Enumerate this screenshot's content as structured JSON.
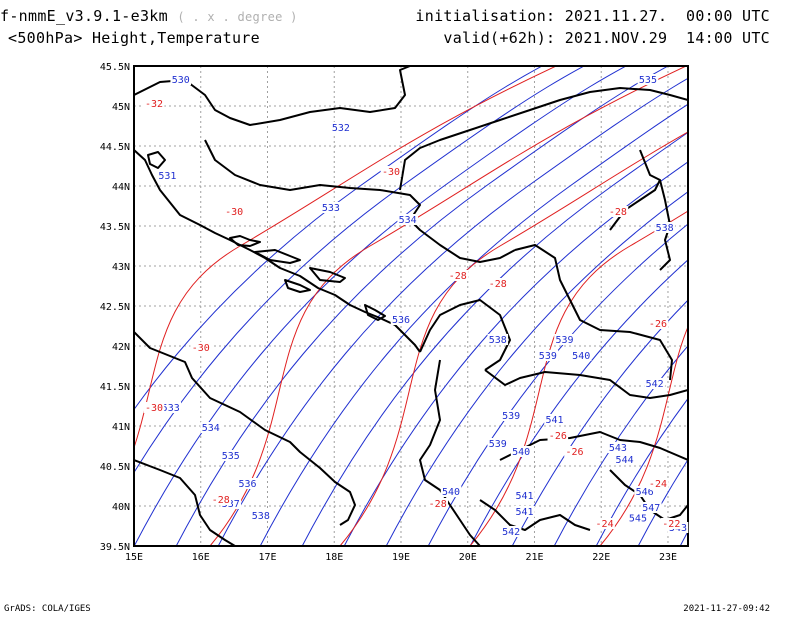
{
  "header": {
    "model_name": "f-nmmE_v3.9.1-e3km",
    "model_units": "( . x . degree )",
    "field": "<500hPa> Height,Temperature",
    "init_label": "initialisation:",
    "init_value": "2021.11.27.  00:00 UTC",
    "valid_label": "valid(+62h):",
    "valid_value": "2021.NOV.29  14:00 UTC"
  },
  "footer": {
    "left": "GrADS: COLA/IGES",
    "right": "2021-11-27-09:42"
  },
  "map": {
    "lon_ticks": [
      "15E",
      "16E",
      "17E",
      "18E",
      "19E",
      "20E",
      "21E",
      "22E",
      "23E"
    ],
    "lat_ticks": [
      "45.5N",
      "45N",
      "44.5N",
      "44N",
      "43.5N",
      "43N",
      "42.5N",
      "42N",
      "41.5N",
      "41N",
      "40.5N",
      "40N",
      "39.5N"
    ],
    "lon_range": [
      15,
      23.3
    ],
    "lat_range": [
      39.5,
      45.5
    ],
    "colors": {
      "height": "#2030d0",
      "temperature": "#e02020",
      "coast": "#000000",
      "grid": "#a0a0a0"
    },
    "height_labels": [
      {
        "text": "530",
        "lon": 15.7,
        "lat": 45.3
      },
      {
        "text": "531",
        "lon": 15.5,
        "lat": 44.1
      },
      {
        "text": "532",
        "lon": 18.1,
        "lat": 44.7
      },
      {
        "text": "533",
        "lon": 17.95,
        "lat": 43.7
      },
      {
        "text": "534",
        "lon": 19.1,
        "lat": 43.55
      },
      {
        "text": "535",
        "lon": 22.7,
        "lat": 45.3
      },
      {
        "text": "538",
        "lon": 22.95,
        "lat": 43.45
      },
      {
        "text": "536",
        "lon": 19.0,
        "lat": 42.3
      },
      {
        "text": "538",
        "lon": 20.45,
        "lat": 42.05
      },
      {
        "text": "539",
        "lon": 21.2,
        "lat": 41.85
      },
      {
        "text": "539",
        "lon": 21.45,
        "lat": 42.05
      },
      {
        "text": "540",
        "lon": 21.7,
        "lat": 41.85
      },
      {
        "text": "542",
        "lon": 22.8,
        "lat": 41.5
      },
      {
        "text": "533",
        "lon": 15.55,
        "lat": 41.2
      },
      {
        "text": "534",
        "lon": 16.15,
        "lat": 40.95
      },
      {
        "text": "535",
        "lon": 16.45,
        "lat": 40.6
      },
      {
        "text": "536",
        "lon": 16.7,
        "lat": 40.25
      },
      {
        "text": "537",
        "lon": 16.45,
        "lat": 40.0
      },
      {
        "text": "538",
        "lon": 16.9,
        "lat": 39.85
      },
      {
        "text": "539",
        "lon": 20.65,
        "lat": 41.1
      },
      {
        "text": "539",
        "lon": 20.45,
        "lat": 40.75
      },
      {
        "text": "540",
        "lon": 20.8,
        "lat": 40.65
      },
      {
        "text": "541",
        "lon": 21.3,
        "lat": 41.05
      },
      {
        "text": "540",
        "lon": 19.75,
        "lat": 40.15
      },
      {
        "text": "541",
        "lon": 20.85,
        "lat": 40.1
      },
      {
        "text": "541",
        "lon": 20.85,
        "lat": 39.9
      },
      {
        "text": "542",
        "lon": 20.65,
        "lat": 39.65
      },
      {
        "text": "543",
        "lon": 22.25,
        "lat": 40.7
      },
      {
        "text": "544",
        "lon": 22.35,
        "lat": 40.55
      },
      {
        "text": "546",
        "lon": 22.65,
        "lat": 40.15
      },
      {
        "text": "547",
        "lon": 22.75,
        "lat": 39.95
      },
      {
        "text": "545",
        "lon": 22.55,
        "lat": 39.82
      },
      {
        "text": "543",
        "lon": 23.15,
        "lat": 39.7
      }
    ],
    "temp_labels": [
      {
        "text": "-32",
        "lon": 15.3,
        "lat": 45.0
      },
      {
        "text": "-30",
        "lon": 18.85,
        "lat": 44.15
      },
      {
        "text": "-30",
        "lon": 16.5,
        "lat": 43.65
      },
      {
        "text": "-28",
        "lon": 22.25,
        "lat": 43.65
      },
      {
        "text": "-28",
        "lon": 19.85,
        "lat": 42.85
      },
      {
        "text": "-28",
        "lon": 20.45,
        "lat": 42.75
      },
      {
        "text": "-26",
        "lon": 22.85,
        "lat": 42.25
      },
      {
        "text": "-30",
        "lon": 16.0,
        "lat": 41.95
      },
      {
        "text": "-30",
        "lon": 15.3,
        "lat": 41.2
      },
      {
        "text": "-28",
        "lon": 16.3,
        "lat": 40.05
      },
      {
        "text": "-26",
        "lon": 21.35,
        "lat": 40.85
      },
      {
        "text": "-26",
        "lon": 21.6,
        "lat": 40.65
      },
      {
        "text": "-28",
        "lon": 19.55,
        "lat": 40.0
      },
      {
        "text": "-24",
        "lon": 22.85,
        "lat": 40.25
      },
      {
        "text": "-24",
        "lon": 22.05,
        "lat": 39.75
      },
      {
        "text": "-22",
        "lon": 23.05,
        "lat": 39.75
      }
    ]
  }
}
